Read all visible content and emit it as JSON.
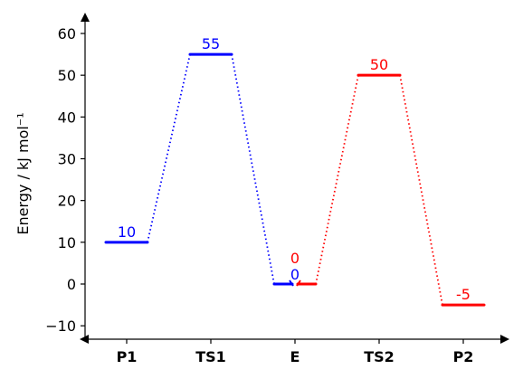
{
  "chart_data": {
    "type": "line",
    "title": "",
    "xlabel": "",
    "ylabel": "Energy / kJ mol⁻¹",
    "categories": [
      "P1",
      "TS1",
      "E",
      "TS2",
      "P2"
    ],
    "ylim": [
      -13,
      65
    ],
    "yticks": [
      -10,
      0,
      10,
      20,
      30,
      40,
      50,
      60
    ],
    "grid": false,
    "series": [
      {
        "color": "#0000ff",
        "levels": [
          {
            "category": "P1",
            "value": 10,
            "label": "10"
          },
          {
            "category": "TS1",
            "value": 55,
            "label": "55"
          },
          {
            "category": "E",
            "value": 0,
            "label": "0"
          }
        ]
      },
      {
        "color": "#ff0000",
        "levels": [
          {
            "category": "E",
            "value": 0,
            "label": "0"
          },
          {
            "category": "TS2",
            "value": 50,
            "label": "50"
          },
          {
            "category": "P2",
            "value": -5,
            "label": "-5"
          }
        ]
      }
    ]
  }
}
